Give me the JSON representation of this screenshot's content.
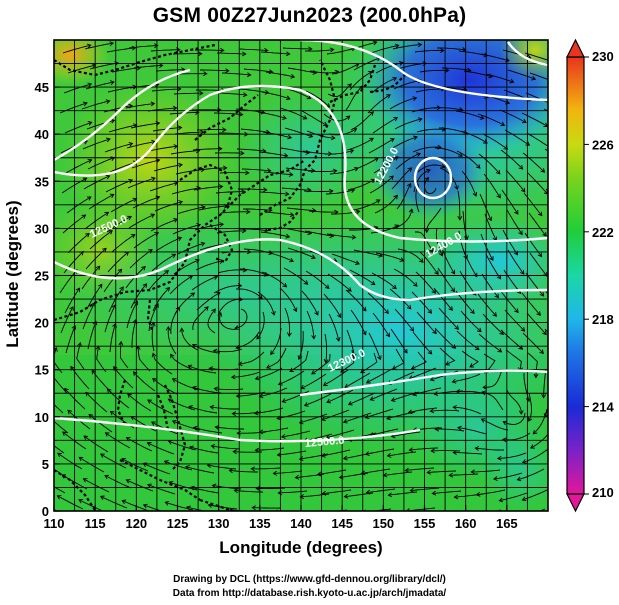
{
  "title": "GSM 00Z27Jun2023 (200.0hPa)",
  "axes": {
    "x_label": "Longitude (degrees)",
    "y_label": "Latitude  (degrees)",
    "x_ticks": [
      "110",
      "115",
      "120",
      "125",
      "130",
      "135",
      "140",
      "145",
      "150",
      "155",
      "160",
      "165"
    ],
    "y_ticks": [
      "0",
      "5",
      "10",
      "15",
      "20",
      "25",
      "30",
      "35",
      "40",
      "45"
    ],
    "x_range": [
      110,
      170
    ],
    "y_range": [
      0,
      50
    ]
  },
  "colorbar": {
    "labels": [
      "230",
      "226",
      "222",
      "218",
      "214",
      "210"
    ],
    "range": [
      210,
      230
    ]
  },
  "contours": [
    {
      "label": "12200.0"
    },
    {
      "label": "12400.0"
    },
    {
      "label": "12500.0"
    },
    {
      "label": "12300.0"
    },
    {
      "label": "12500.0"
    }
  ],
  "credits": {
    "line1": "Drawing by DCL (https://www.gfd-dennou.org/library/dcl/)",
    "line2": "Data from http://database.rish.kyoto-u.ac.jp/arch/jmadata/"
  }
}
